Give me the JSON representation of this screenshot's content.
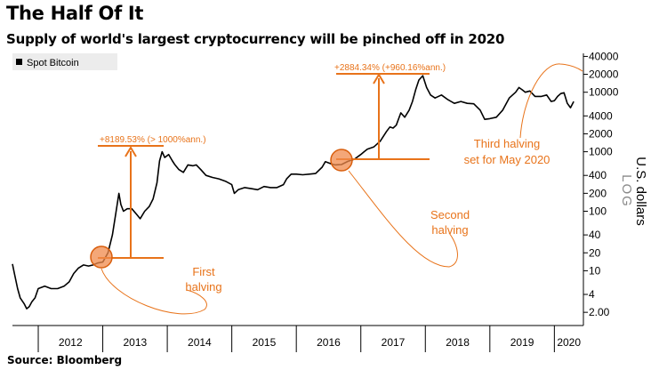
{
  "chart_data": {
    "type": "line",
    "title": "The Half Of It",
    "subtitle": "Supply of world's largest cryptocurrency will be pinched off in 2020",
    "source": "Source: Bloomberg",
    "legend": {
      "label": "Spot Bitcoin",
      "placement": "top-left",
      "color": "#000000"
    },
    "ylabel": "U.S. dollars",
    "y_scale_label": "LOG",
    "y_scale": "log",
    "ylim": [
      1.2,
      45000
    ],
    "y_ticks": [
      {
        "value": 40000,
        "label": "40000"
      },
      {
        "value": 20000,
        "label": "20000"
      },
      {
        "value": 10000,
        "label": "10000"
      },
      {
        "value": 4000,
        "label": "4000"
      },
      {
        "value": 2000,
        "label": "2000"
      },
      {
        "value": 1000,
        "label": "1000"
      },
      {
        "value": 400,
        "label": "400"
      },
      {
        "value": 200,
        "label": "200"
      },
      {
        "value": 100,
        "label": "100"
      },
      {
        "value": 40,
        "label": "40"
      },
      {
        "value": 20,
        "label": "20"
      },
      {
        "value": 10,
        "label": "10"
      },
      {
        "value": 4,
        "label": "4"
      },
      {
        "value": 2,
        "label": "2.00"
      }
    ],
    "x_labels": [
      "2012",
      "2013",
      "2014",
      "2015",
      "2016",
      "2017",
      "2018",
      "2019",
      "2020"
    ],
    "xlim": [
      2011.6,
      2020.45
    ],
    "series": [
      {
        "name": "Spot Bitcoin",
        "color": "#000000",
        "x": [
          2011.6,
          2011.63,
          2011.68,
          2011.72,
          2011.78,
          2011.82,
          2011.86,
          2011.9,
          2011.95,
          2012.0,
          2012.1,
          2012.2,
          2012.3,
          2012.4,
          2012.48,
          2012.55,
          2012.62,
          2012.7,
          2012.78,
          2012.85,
          2012.92,
          2013.0,
          2013.08,
          2013.15,
          2013.2,
          2013.25,
          2013.28,
          2013.32,
          2013.38,
          2013.45,
          2013.52,
          2013.58,
          2013.65,
          2013.72,
          2013.78,
          2013.84,
          2013.88,
          2013.92,
          2013.96,
          2014.02,
          2014.08,
          2014.12,
          2014.18,
          2014.25,
          2014.32,
          2014.4,
          2014.45,
          2014.52,
          2014.6,
          2014.7,
          2014.8,
          2014.9,
          2015.0,
          2015.04,
          2015.1,
          2015.2,
          2015.3,
          2015.4,
          2015.5,
          2015.6,
          2015.7,
          2015.8,
          2015.85,
          2015.92,
          2016.0,
          2016.1,
          2016.2,
          2016.3,
          2016.4,
          2016.45,
          2016.5,
          2016.55,
          2016.6,
          2016.7,
          2016.8,
          2016.9,
          2017.0,
          2017.05,
          2017.1,
          2017.2,
          2017.3,
          2017.4,
          2017.45,
          2017.5,
          2017.55,
          2017.62,
          2017.68,
          2017.75,
          2017.8,
          2017.85,
          2017.9,
          2017.96,
          2018.02,
          2018.08,
          2018.15,
          2018.25,
          2018.35,
          2018.45,
          2018.55,
          2018.65,
          2018.75,
          2018.85,
          2018.92,
          2019.0,
          2019.1,
          2019.2,
          2019.3,
          2019.4,
          2019.45,
          2019.5,
          2019.55,
          2019.62,
          2019.7,
          2019.8,
          2019.88,
          2019.95,
          2020.0,
          2020.05,
          2020.1,
          2020.15,
          2020.2,
          2020.25,
          2020.3
        ],
        "y": [
          13,
          9,
          5,
          3.5,
          2.8,
          2.3,
          2.5,
          3,
          3.5,
          5,
          5.5,
          5,
          5,
          5.5,
          6.5,
          9,
          11,
          12.5,
          12,
          12.5,
          13.5,
          14,
          20,
          40,
          90,
          200,
          130,
          100,
          110,
          110,
          90,
          75,
          100,
          120,
          160,
          300,
          700,
          1000,
          800,
          900,
          700,
          600,
          500,
          450,
          600,
          580,
          600,
          500,
          400,
          370,
          350,
          320,
          280,
          200,
          230,
          250,
          240,
          230,
          260,
          250,
          250,
          280,
          350,
          420,
          420,
          410,
          420,
          430,
          550,
          680,
          650,
          620,
          600,
          610,
          690,
          750,
          900,
          1000,
          1100,
          1200,
          1500,
          2200,
          2600,
          2500,
          2800,
          4500,
          3800,
          5000,
          7000,
          11000,
          16000,
          19000,
          12000,
          9000,
          8000,
          9000,
          7500,
          6500,
          7000,
          6500,
          6400,
          5000,
          3500,
          3600,
          3800,
          5000,
          8000,
          10000,
          12000,
          11000,
          10000,
          10500,
          8500,
          8500,
          9000,
          7000,
          7200,
          8500,
          9500,
          9800,
          6500,
          5500,
          7000
        ]
      }
    ],
    "annotations": [
      {
        "label": "+8189.53% (> 1000%ann.)",
        "type": "gain"
      },
      {
        "label": "+2884.34% (+960.16%ann.)",
        "type": "gain"
      },
      {
        "label": "First",
        "label2": "halving",
        "type": "halving"
      },
      {
        "label": "Second",
        "label2": "halving",
        "type": "halving"
      },
      {
        "label": "Third halving",
        "label2": "set for May 2020",
        "type": "halving"
      }
    ],
    "grid": false,
    "accent_color": "#e8731a"
  }
}
